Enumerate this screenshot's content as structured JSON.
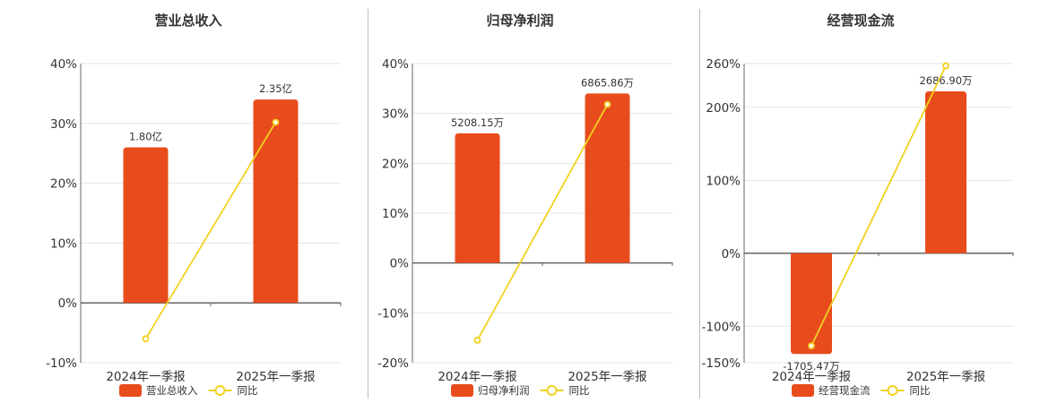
{
  "chart_data": [
    {
      "type": "bar",
      "title": "营业总收入",
      "categories": [
        "2024年一季报",
        "2025年一季报"
      ],
      "yticks": [
        "40%",
        "30%",
        "20%",
        "10%",
        "0%",
        "-10%"
      ],
      "ylim": [
        -10,
        40
      ],
      "series": [
        {
          "name": "营业总收入",
          "type": "bar",
          "values": [
            26,
            34
          ],
          "labels": [
            "1.80亿",
            "2.35亿"
          ]
        },
        {
          "name": "同比",
          "type": "line",
          "values": [
            -6,
            30.2
          ]
        }
      ],
      "legend": "bottom",
      "grid": true
    },
    {
      "type": "bar",
      "title": "归母净利润",
      "categories": [
        "2024年一季报",
        "2025年一季报"
      ],
      "yticks": [
        "40%",
        "30%",
        "20%",
        "10%",
        "0%",
        "-10%",
        "-20%"
      ],
      "ylim": [
        -20,
        40
      ],
      "series": [
        {
          "name": "归母净利润",
          "type": "bar",
          "values": [
            26,
            34
          ],
          "labels": [
            "5208.15万",
            "6865.86万"
          ]
        },
        {
          "name": "同比",
          "type": "line",
          "values": [
            -15.5,
            31.8
          ]
        }
      ],
      "legend": "bottom",
      "grid": true
    },
    {
      "type": "bar",
      "title": "经营现金流",
      "categories": [
        "2024年一季报",
        "2025年一季报"
      ],
      "yticks": [
        "260%",
        "200%",
        "100%",
        "0%",
        "-100%",
        "-150%"
      ],
      "ylim": [
        -150,
        260
      ],
      "series": [
        {
          "name": "经营现金流",
          "type": "bar",
          "values": [
            -138,
            222
          ],
          "labels": [
            "-1705.47万",
            "2686.90万"
          ]
        },
        {
          "name": "同比",
          "type": "line",
          "values": [
            -127,
            257
          ]
        }
      ],
      "legend": "bottom",
      "grid": true
    }
  ],
  "colors": {
    "bar": "#e84c1c",
    "line": "#f1d120",
    "grid": "#e6e6e6",
    "axis": "#666666"
  }
}
